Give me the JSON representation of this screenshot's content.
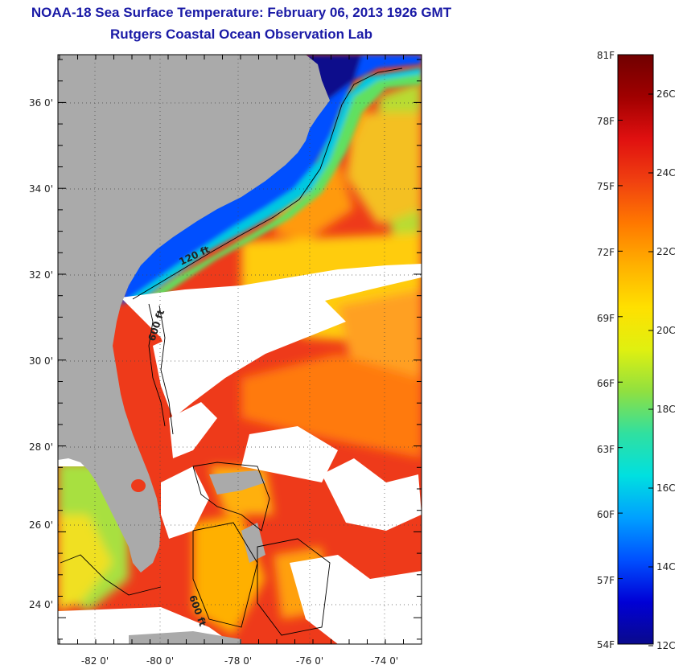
{
  "title": "NOAA-18 Sea Surface Temperature:  February 06, 2013 1926 GMT",
  "subtitle": "Rutgers Coastal Ocean Observation Lab",
  "latitude_labels": [
    "36 0'",
    "34 0'",
    "32 0'",
    "30 0'",
    "28 0'",
    "26 0'",
    "24 0'"
  ],
  "longitude_labels": [
    "-82 0'",
    "-80 0'",
    "-78 0'",
    "-76 0'",
    "-74 0'"
  ],
  "contour_labels": [
    "120 ft",
    "600 ft",
    "600 ft"
  ],
  "colorbar": {
    "fahrenheit_labels": [
      "81F",
      "78F",
      "75F",
      "72F",
      "69F",
      "66F",
      "63F",
      "60F",
      "57F",
      "54F"
    ],
    "celsius_labels": [
      "26C",
      "24C",
      "22C",
      "20C",
      "18C",
      "16C",
      "14C",
      "12C"
    ],
    "colors": [
      "#0a0a8c",
      "#0000d6",
      "#0050ff",
      "#00a0ff",
      "#00e0e0",
      "#30e0a0",
      "#90e040",
      "#e0f010",
      "#ffe000",
      "#ffb000",
      "#ff7800",
      "#f04010",
      "#e01010",
      "#a00000",
      "#700000"
    ]
  },
  "colors": {
    "title": "#1a1aa6",
    "land": "#aaaaaa",
    "cloud": "#ffffff"
  }
}
